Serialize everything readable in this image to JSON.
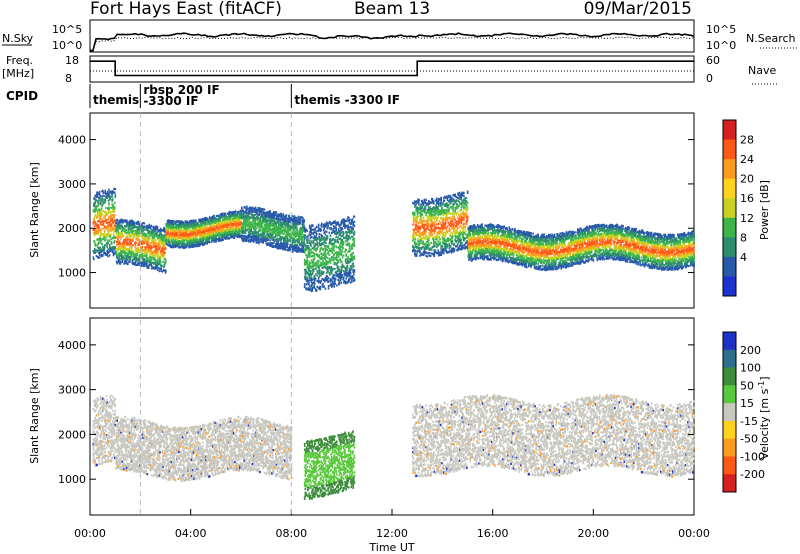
{
  "header": {
    "station": "Fort Hays East (fitACF)",
    "beam": "Beam 13",
    "date": "09/Mar/2015"
  },
  "summary_panels": {
    "nsky_label": "N.Sky",
    "nsky_ticks": [
      "10^5",
      "10^0"
    ],
    "nsearch_label": "N.Search",
    "freq_label": "Freq.",
    "freq_unit": "[MHz]",
    "freq_ticks": [
      "18",
      "8"
    ],
    "nave_ticks": [
      "60",
      "0"
    ],
    "nave_label": "Nave",
    "cpid_label": "CPID",
    "cpid_segments": [
      {
        "start_h": 0.0,
        "lines": [
          "themis"
        ]
      },
      {
        "start_h": 2.0,
        "lines": [
          "rbsp 200 IF",
          "-3300 IF"
        ]
      },
      {
        "start_h": 8.0,
        "lines": [
          "themis -3300 IF"
        ]
      }
    ],
    "freq_series": [
      {
        "t0": 0.0,
        "t1": 1.0,
        "mhz": 16
      },
      {
        "t0": 1.0,
        "t1": 13.0,
        "mhz": 10.5
      },
      {
        "t0": 13.0,
        "t1": 24.0,
        "mhz": 16
      }
    ]
  },
  "chart_data": [
    {
      "type": "heatmap",
      "panel": "power",
      "xlabel": "",
      "ylabel": "Slant Range [km]",
      "xlim_hours": [
        0,
        24
      ],
      "ylim_km": [
        200,
        4600
      ],
      "yticks": [
        1000,
        2000,
        3000,
        4000
      ],
      "colorbar": {
        "label": "Power [dB]",
        "ticks": [
          "28",
          "24",
          "20",
          "16",
          "12",
          "8",
          "4"
        ],
        "colors": [
          "#d42020",
          "#ff5a14",
          "#ff9a1e",
          "#ffd21e",
          "#c8d21e",
          "#3cb44b",
          "#2d8c6e",
          "#285aaa",
          "#1e32d2"
        ]
      },
      "echo_bands": [
        {
          "t0": 0.1,
          "t1": 1.0,
          "r0": 1300,
          "r1": 2800,
          "level": "high"
        },
        {
          "t0": 1.0,
          "t1": 3.0,
          "r0": 1100,
          "r1": 2100,
          "level": "high"
        },
        {
          "t0": 3.0,
          "t1": 6.0,
          "r0": 1700,
          "r1": 2300,
          "level": "high"
        },
        {
          "t0": 6.0,
          "t1": 8.5,
          "r0": 1600,
          "r1": 2400,
          "level": "mid"
        },
        {
          "t0": 8.5,
          "t1": 10.5,
          "r0": 700,
          "r1": 2200,
          "level": "mid"
        },
        {
          "t0": 12.8,
          "t1": 15.0,
          "r0": 1500,
          "r1": 2800,
          "level": "high"
        },
        {
          "t0": 15.0,
          "t1": 20.0,
          "r0": 1200,
          "r1": 2000,
          "level": "high"
        },
        {
          "t0": 20.0,
          "t1": 24.0,
          "r0": 1200,
          "r1": 2000,
          "level": "high"
        }
      ]
    },
    {
      "type": "heatmap",
      "panel": "velocity",
      "xlabel": "Time UT",
      "ylabel": "Slant Range [km]",
      "xlim_hours": [
        0,
        24
      ],
      "ylim_km": [
        200,
        4600
      ],
      "xticks": [
        "00:00",
        "04:00",
        "08:00",
        "12:00",
        "16:00",
        "20:00",
        "00:00"
      ],
      "yticks": [
        1000,
        2000,
        3000,
        4000
      ],
      "colorbar": {
        "label": "Velocity [m s^-1]",
        "ticks": [
          "200",
          "100",
          "50",
          "15",
          "-15",
          "-50",
          "-100",
          "-200"
        ],
        "colors": [
          "#1e32c8",
          "#2d6e8c",
          "#3c8c3c",
          "#5ac83c",
          "#c8c8c0",
          "#ffd21e",
          "#ff9a1e",
          "#ff5a14",
          "#d42020"
        ]
      },
      "echo_bands": [
        {
          "t0": 0.1,
          "t1": 1.0,
          "r0": 1300,
          "r1": 2800,
          "vel": "ground"
        },
        {
          "t0": 1.0,
          "t1": 8.0,
          "r0": 1100,
          "r1": 2300,
          "vel": "ground"
        },
        {
          "t0": 8.5,
          "t1": 10.5,
          "r0": 700,
          "r1": 2000,
          "vel": "positive"
        },
        {
          "t0": 12.8,
          "t1": 24.0,
          "r0": 1200,
          "r1": 2800,
          "vel": "ground"
        }
      ]
    }
  ]
}
